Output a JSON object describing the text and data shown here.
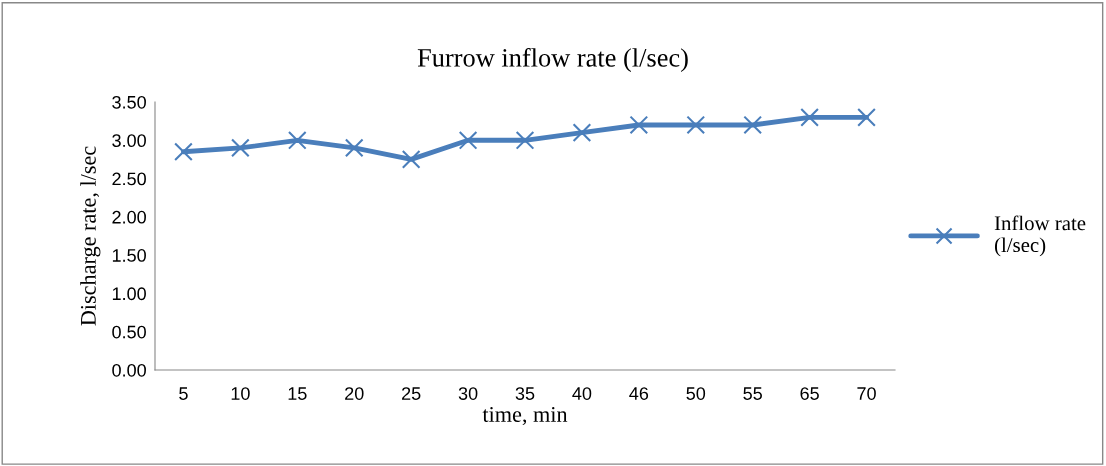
{
  "chart_data": {
    "type": "line",
    "title": "Furrow inflow rate (l/sec)",
    "xlabel": "time, min",
    "ylabel": "Discharge rate, l/sec",
    "categories": [
      "5",
      "10",
      "15",
      "20",
      "25",
      "30",
      "35",
      "40",
      "46",
      "50",
      "55",
      "65",
      "70"
    ],
    "series": [
      {
        "name": "Inflow rate\n(l/sec)",
        "color": "#4a7ebb",
        "values": [
          2.85,
          2.9,
          3.0,
          2.9,
          2.75,
          3.0,
          3.0,
          3.1,
          3.2,
          3.2,
          3.2,
          3.3,
          3.3
        ]
      }
    ],
    "ylim": [
      0,
      3.5
    ],
    "yticks": [
      {
        "value": 0,
        "label": "0.00"
      },
      {
        "value": 0.5,
        "label": "0.50"
      },
      {
        "value": 1,
        "label": "1.00"
      },
      {
        "value": 1.5,
        "label": "1.50"
      },
      {
        "value": 2,
        "label": "2.00"
      },
      {
        "value": 2.5,
        "label": "2.50"
      },
      {
        "value": 3,
        "label": "3.00"
      },
      {
        "value": 3.5,
        "label": "3.50"
      }
    ],
    "grid": false,
    "legend": "right",
    "marker": "cross",
    "line_style": "solid"
  }
}
